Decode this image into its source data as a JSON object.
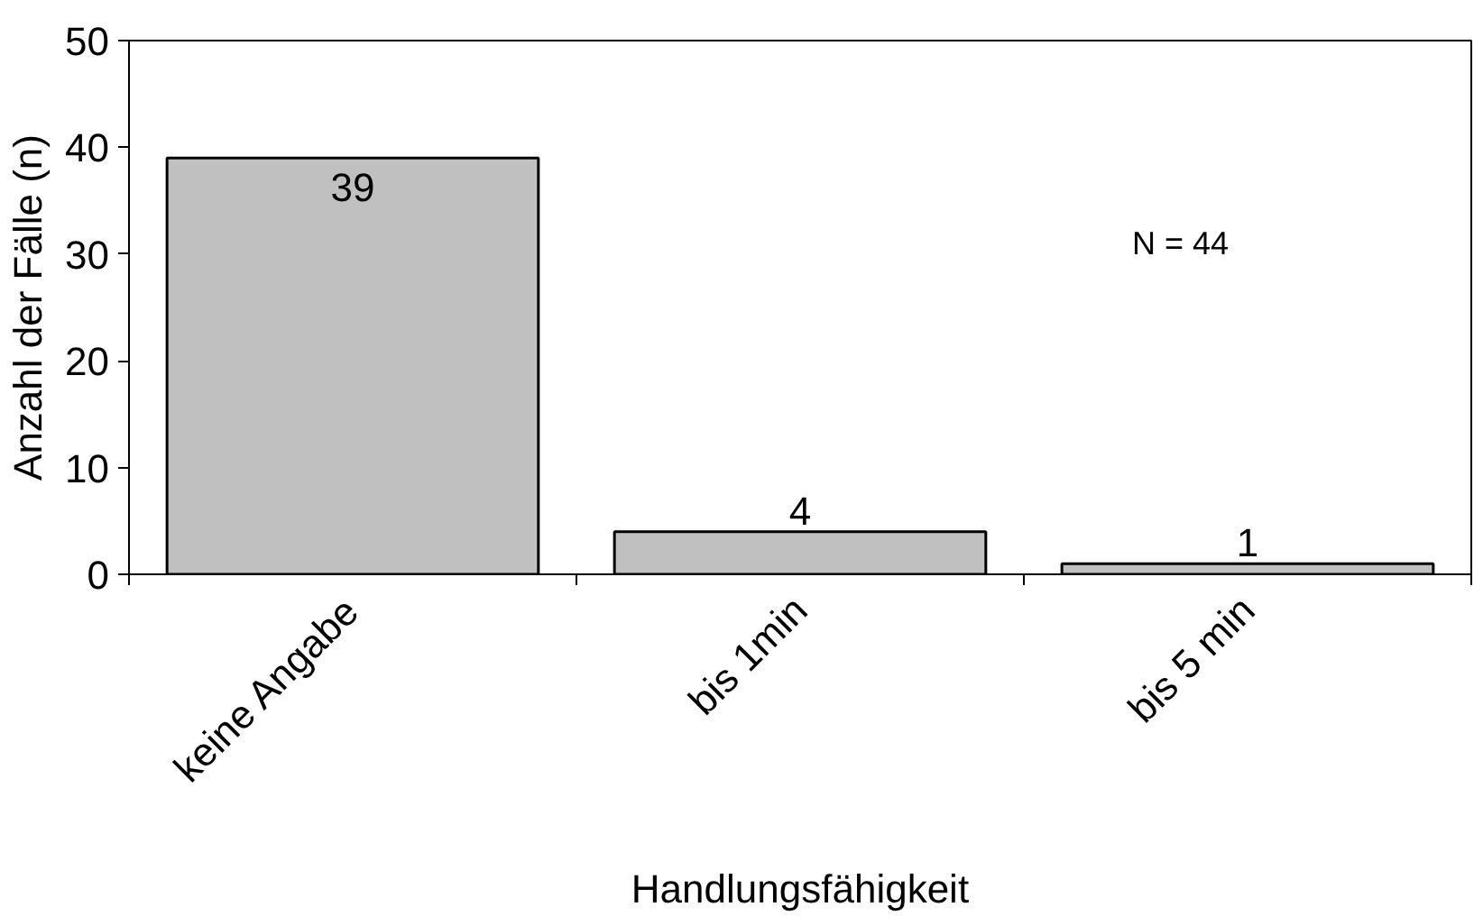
{
  "chart_data": {
    "type": "bar",
    "xlabel": "Handlungsfähigkeit",
    "ylabel": "Anzahl der Fälle (n)",
    "categories": [
      "keine Angabe",
      "bis 1min",
      "bis 5 min"
    ],
    "values": [
      39,
      4,
      1
    ],
    "color": "#c0c0c0",
    "ylim": [
      0,
      50
    ],
    "yticks": [
      0,
      10,
      20,
      30,
      40,
      50
    ],
    "data_labels": true,
    "grid": false,
    "annotations": [
      "N = 44"
    ]
  }
}
